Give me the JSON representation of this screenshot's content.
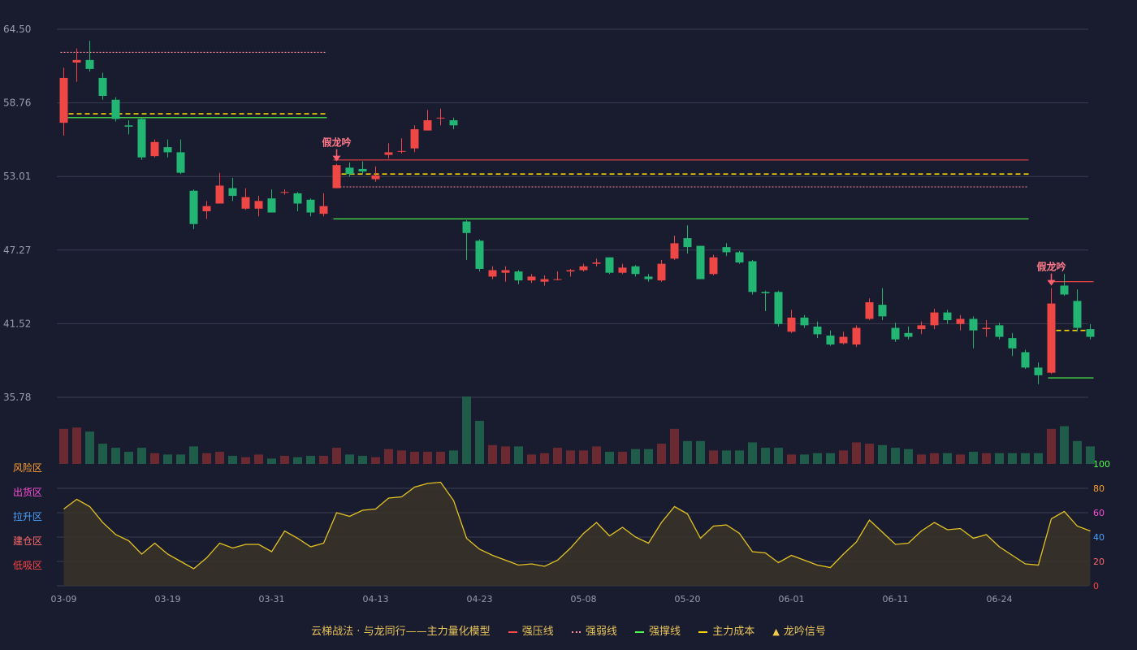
{
  "chart_data": {
    "type": "candlestick",
    "price_ticks": [
      "64.50",
      "58.76",
      "53.01",
      "47.27",
      "41.52",
      "35.78"
    ],
    "price_range": [
      35.78,
      64.5
    ],
    "dates": [
      "03-09",
      "03-19",
      "03-31",
      "04-13",
      "04-23",
      "05-08",
      "05-20",
      "06-01",
      "06-11",
      "06-24"
    ],
    "date_tick_index": [
      0,
      8,
      16,
      24,
      32,
      40,
      48,
      56,
      64,
      72
    ],
    "osc_ticks": [
      "100",
      "80",
      "60",
      "40",
      "20",
      "0"
    ],
    "osc_tick_colors": [
      "#4cff4c",
      "#ff9f2e",
      "#ff4fd8",
      "#4aa3ff",
      "#ff6b6b",
      "#ff4444"
    ],
    "zones": [
      {
        "label": "风险区",
        "color": "#ff9f2e"
      },
      {
        "label": "出货区",
        "color": "#ff4fd8"
      },
      {
        "label": "拉升区",
        "color": "#4aa3ff"
      },
      {
        "label": "建仓区",
        "color": "#ff6b6b"
      },
      {
        "label": "低吸区",
        "color": "#ff4444"
      }
    ],
    "colors": {
      "up": "#ef4646",
      "down": "#22b573",
      "volume_up": "#6b2a32",
      "volume_down": "#1f5c49",
      "oscillator": "#e3c324",
      "grid": "#3a3d52"
    },
    "ohlc": [
      [
        57.2,
        60.7,
        56.2,
        61.5
      ],
      [
        61.9,
        62.1,
        60.4,
        63.0
      ],
      [
        62.1,
        61.4,
        61.2,
        63.6
      ],
      [
        60.7,
        59.3,
        59.0,
        61.1
      ],
      [
        59.0,
        57.5,
        57.3,
        59.2
      ],
      [
        57.0,
        56.9,
        56.3,
        57.4
      ],
      [
        57.5,
        54.5,
        54.3,
        57.6
      ],
      [
        54.6,
        55.7,
        54.5,
        55.9
      ],
      [
        55.3,
        54.9,
        54.5,
        55.9
      ],
      [
        54.9,
        53.3,
        53.2,
        55.9
      ],
      [
        51.9,
        49.3,
        48.9,
        52.0
      ],
      [
        50.3,
        50.7,
        49.7,
        51.1
      ],
      [
        50.9,
        52.3,
        50.9,
        53.3
      ],
      [
        52.1,
        51.5,
        51.1,
        52.9
      ],
      [
        50.5,
        51.4,
        50.4,
        52.1
      ],
      [
        50.5,
        51.1,
        49.9,
        51.5
      ],
      [
        51.3,
        50.2,
        50.2,
        52.0
      ],
      [
        51.8,
        51.8,
        51.6,
        52.0
      ],
      [
        51.7,
        50.9,
        50.3,
        51.8
      ],
      [
        51.2,
        50.2,
        49.9,
        51.3
      ],
      [
        50.1,
        50.7,
        49.9,
        51.7
      ],
      [
        52.1,
        53.9,
        52.1,
        54.0
      ],
      [
        53.7,
        53.2,
        53.0,
        54.1
      ],
      [
        53.6,
        53.4,
        53.2,
        54.2
      ],
      [
        52.8,
        53.1,
        52.6,
        53.8
      ],
      [
        54.7,
        54.9,
        54.4,
        55.6
      ],
      [
        55.0,
        55.0,
        54.8,
        56.0
      ],
      [
        55.2,
        56.7,
        54.9,
        57.0
      ],
      [
        56.6,
        57.4,
        56.6,
        58.2
      ],
      [
        57.6,
        57.6,
        57.0,
        58.3
      ],
      [
        57.4,
        57.0,
        56.7,
        57.6
      ],
      [
        49.5,
        48.6,
        46.5,
        49.6
      ],
      [
        48.0,
        45.8,
        45.6,
        48.1
      ],
      [
        45.2,
        45.7,
        45.0,
        46.0
      ],
      [
        45.5,
        45.7,
        44.8,
        46.0
      ],
      [
        45.6,
        44.9,
        44.6,
        45.7
      ],
      [
        44.9,
        45.2,
        44.7,
        45.4
      ],
      [
        44.8,
        45.0,
        44.5,
        45.3
      ],
      [
        45.0,
        45.0,
        44.9,
        45.6
      ],
      [
        45.6,
        45.7,
        45.2,
        45.8
      ],
      [
        45.7,
        46.0,
        45.6,
        46.2
      ],
      [
        46.2,
        46.3,
        46.0,
        46.6
      ],
      [
        46.7,
        45.5,
        45.4,
        46.7
      ],
      [
        45.5,
        45.9,
        45.4,
        46.2
      ],
      [
        46.0,
        45.4,
        45.2,
        46.1
      ],
      [
        45.2,
        45.0,
        44.8,
        45.4
      ],
      [
        44.9,
        46.2,
        44.8,
        46.5
      ],
      [
        46.6,
        47.8,
        46.5,
        48.4
      ],
      [
        48.2,
        47.5,
        47.0,
        49.2
      ],
      [
        47.6,
        45.0,
        45.0,
        47.6
      ],
      [
        45.4,
        46.7,
        45.3,
        46.9
      ],
      [
        47.5,
        47.1,
        46.8,
        47.8
      ],
      [
        47.1,
        46.3,
        46.2,
        47.2
      ],
      [
        46.4,
        44.0,
        43.8,
        46.5
      ],
      [
        44.0,
        43.9,
        42.5,
        44.1
      ],
      [
        44.0,
        41.5,
        41.3,
        44.1
      ],
      [
        40.9,
        42.0,
        40.8,
        42.6
      ],
      [
        42.0,
        41.4,
        41.2,
        42.2
      ],
      [
        41.3,
        40.7,
        40.4,
        41.7
      ],
      [
        40.6,
        39.9,
        39.8,
        41.0
      ],
      [
        40.0,
        40.5,
        39.9,
        40.9
      ],
      [
        39.9,
        41.2,
        39.7,
        41.4
      ],
      [
        41.9,
        43.2,
        41.8,
        43.5
      ],
      [
        43.0,
        42.1,
        41.8,
        44.3
      ],
      [
        41.2,
        40.3,
        40.1,
        41.6
      ],
      [
        40.8,
        40.5,
        40.3,
        41.3
      ],
      [
        41.1,
        41.4,
        40.7,
        41.7
      ],
      [
        41.4,
        42.4,
        41.1,
        42.7
      ],
      [
        42.4,
        41.8,
        41.5,
        42.6
      ],
      [
        41.5,
        41.9,
        41.0,
        42.2
      ],
      [
        41.9,
        41.0,
        39.6,
        42.1
      ],
      [
        41.1,
        41.2,
        40.5,
        41.8
      ],
      [
        41.4,
        40.5,
        40.3,
        41.6
      ],
      [
        40.4,
        39.6,
        39.0,
        40.8
      ],
      [
        39.3,
        38.1,
        38.0,
        39.5
      ],
      [
        38.1,
        37.5,
        36.8,
        38.5
      ],
      [
        37.7,
        43.1,
        37.6,
        44.3
      ],
      [
        44.5,
        43.8,
        43.7,
        45.4
      ],
      [
        43.3,
        41.2,
        40.9,
        44.2
      ],
      [
        41.1,
        40.5,
        40.3,
        41.5
      ]
    ],
    "volume": [
      26,
      27,
      24,
      15,
      12,
      9,
      12,
      8,
      7,
      7,
      13,
      8,
      9,
      6,
      5,
      7,
      4,
      6,
      5,
      6,
      6,
      12,
      7,
      6,
      5,
      11,
      10,
      9,
      9,
      9,
      10,
      50,
      32,
      14,
      13,
      13,
      7,
      8,
      12,
      10,
      10,
      13,
      9,
      9,
      11,
      11,
      15,
      26,
      17,
      17,
      10,
      10,
      10,
      16,
      12,
      12,
      7,
      7,
      8,
      8,
      10,
      16,
      15,
      14,
      12,
      11,
      7,
      8,
      8,
      7,
      9,
      8,
      8,
      8,
      8,
      8,
      26,
      28,
      17,
      13
    ],
    "oscillator": [
      63,
      71,
      65,
      52,
      42,
      37,
      26,
      35,
      26,
      20,
      14,
      23,
      35,
      31,
      34,
      34,
      28,
      45,
      39,
      32,
      35,
      60,
      57,
      62,
      63,
      72,
      73,
      81,
      84,
      85,
      70,
      39,
      30,
      25,
      21,
      17,
      18,
      16,
      21,
      31,
      43,
      52,
      41,
      48,
      40,
      35,
      52,
      65,
      59,
      39,
      49,
      50,
      43,
      28,
      27,
      19,
      25,
      21,
      17,
      15,
      26,
      36,
      54,
      44,
      34,
      35,
      45,
      52,
      46,
      47,
      39,
      42,
      32,
      25,
      18,
      17,
      55,
      61,
      49,
      45
    ],
    "lines": [
      {
        "name": "强压线",
        "style": "dotted",
        "color": "#ff8f9a",
        "value": 62.7,
        "from": 0,
        "to": 20
      },
      {
        "name": "主力成本",
        "style": "dashed",
        "color": "#f6d400",
        "value": 57.9,
        "from": 0,
        "to": 20
      },
      {
        "name": "强撑线",
        "style": "solid",
        "color": "#4cff4c",
        "value": 57.6,
        "from": 0,
        "to": 20
      },
      {
        "name": "强压线",
        "style": "solid",
        "color": "#ff4a4a",
        "value": 54.3,
        "from": 21,
        "to": 74
      },
      {
        "name": "主力成本",
        "style": "dashed",
        "color": "#f6d400",
        "value": 53.2,
        "from": 21,
        "to": 74
      },
      {
        "name": "强弱线",
        "style": "dotted",
        "color": "#ff8f9a",
        "value": 52.2,
        "from": 21,
        "to": 74
      },
      {
        "name": "强撑线",
        "style": "solid",
        "color": "#4cff4c",
        "value": 49.7,
        "from": 21,
        "to": 74
      },
      {
        "name": "强压线",
        "style": "solid",
        "color": "#ff4a4a",
        "value": 44.8,
        "from": 76,
        "to": 79
      },
      {
        "name": "主力成本",
        "style": "dashed",
        "color": "#f6d400",
        "value": 41.0,
        "from": 76,
        "to": 79
      },
      {
        "name": "强撑线",
        "style": "solid",
        "color": "#4cff4c",
        "value": 37.3,
        "from": 76,
        "to": 79
      }
    ],
    "signals": [
      {
        "index": 21,
        "label": "假龙吟"
      },
      {
        "index": 76,
        "label": "假龙吟"
      }
    ]
  },
  "legend": {
    "title": "云梯战法 · 与龙同行——主力量化模型",
    "items": [
      "强压线",
      "强弱线",
      "强撑线",
      "主力成本",
      "龙吟信号"
    ]
  }
}
